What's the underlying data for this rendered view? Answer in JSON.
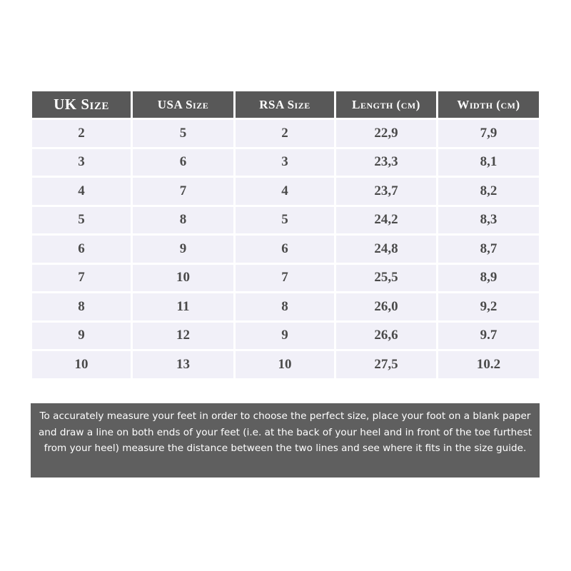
{
  "table": {
    "headers": [
      "UK Size",
      "USA Size",
      "RSA Size",
      "Length (cm)",
      "Width (cm)"
    ],
    "rows": [
      [
        "2",
        "5",
        "2",
        "22,9",
        "7,9"
      ],
      [
        "3",
        "6",
        "3",
        "23,3",
        "8,1"
      ],
      [
        "4",
        "7",
        "4",
        "23,7",
        "8,2"
      ],
      [
        "5",
        "8",
        "5",
        "24,2",
        "8,3"
      ],
      [
        "6",
        "9",
        "6",
        "24,8",
        "8,7"
      ],
      [
        "7",
        "10",
        "7",
        "25,5",
        "8,9"
      ],
      [
        "8",
        "11",
        "8",
        "26,0",
        "9,2"
      ],
      [
        "9",
        "12",
        "9",
        "26,6",
        "9.7"
      ],
      [
        "10",
        "13",
        "10",
        "27,5",
        "10.2"
      ]
    ]
  },
  "note": "To accurately measure your feet in order to choose the perfect size, place your foot on a blank paper and draw a line on both ends of your feet (i.e. at the back of your heel and in front of the toe furthest from your heel) measure the distance between the two lines and see where it fits in the size guide.",
  "colors": {
    "header_bg": "#585858",
    "cell_bg": "#f1f0f8",
    "note_bg": "#5f5f5f"
  }
}
